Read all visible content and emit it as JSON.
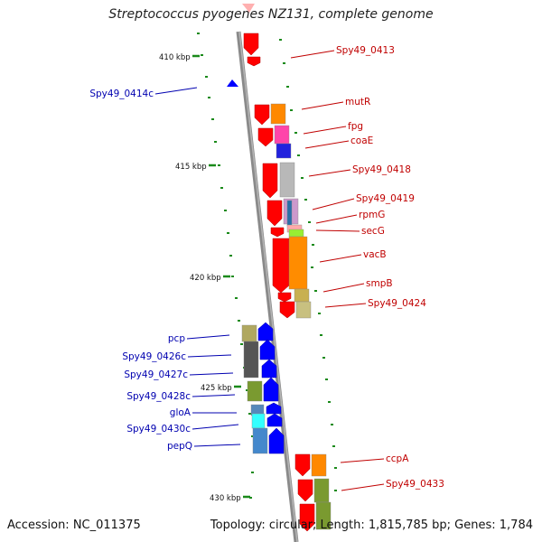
{
  "title": "Streptococcus pyogenes NZ131, complete genome",
  "footer": {
    "accession": "Accession: NC_011375",
    "topology": "Topology: circular; Length: 1,815,785 bp; Genes: 1,784"
  },
  "colors": {
    "forward_label": "#c00000",
    "reverse_label": "#0000b0",
    "forward_arrow": "#ff0000",
    "reverse_arrow": "#0000ff",
    "tick": "#1a8a1a",
    "backbone": "#888888"
  },
  "kbp_labels": [
    "410 kbp",
    "415 kbp",
    "420 kbp",
    "425 kbp",
    "430 kbp"
  ],
  "forward_labels": [
    "Spy49_0413",
    "mutR",
    "fpg",
    "coaE",
    "Spy49_0418",
    "Spy49_0419",
    "rpmG",
    "secG",
    "vacB",
    "smpB",
    "Spy49_0424",
    "ccpA",
    "Spy49_0433"
  ],
  "reverse_labels": [
    "Spy49_0414c",
    "pcp",
    "Spy49_0426c",
    "Spy49_0427c",
    "Spy49_0428c",
    "gloA",
    "Spy49_0430c",
    "pepQ"
  ]
}
